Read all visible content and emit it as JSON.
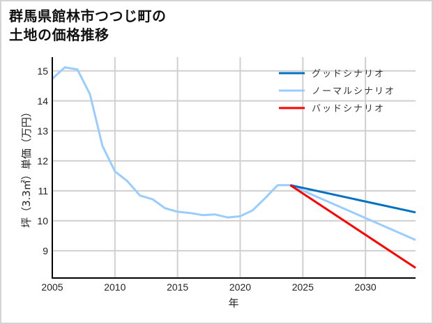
{
  "title": {
    "line1": "群馬県館林市つつじ町の",
    "line2": "土地の価格推移"
  },
  "colors": {
    "good": "#0070C0",
    "normal": "#99CCFF",
    "bad": "#FF0000",
    "grid": "#d0d0d0",
    "axis": "#000000"
  },
  "chart_data": {
    "type": "line",
    "title": "群馬県館林市つつじ町の土地の価格推移",
    "xlabel": "年",
    "ylabel": "坪（3.3㎡）単価（万円）",
    "xlim": [
      2005,
      2034
    ],
    "ylim": [
      8.09,
      15.46
    ],
    "xticks": [
      2005,
      2010,
      2015,
      2020,
      2025,
      2030
    ],
    "yticks": [
      9,
      10,
      11,
      12,
      13,
      14,
      15
    ],
    "grid": true,
    "legend_position": "upper right",
    "series": [
      {
        "name": "グッドシナリオ",
        "color": "#0070C0",
        "x": [
          2024,
          2034
        ],
        "values": [
          11.19,
          10.28
        ]
      },
      {
        "name": "ノーマルシナリオ",
        "color": "#99CCFF",
        "x": [
          2005,
          2006,
          2007,
          2008,
          2009,
          2010,
          2011,
          2012,
          2013,
          2014,
          2015,
          2016,
          2017,
          2018,
          2019,
          2020,
          2021,
          2022,
          2023,
          2024,
          2034
        ],
        "values": [
          14.74,
          15.12,
          15.05,
          14.23,
          12.5,
          11.65,
          11.32,
          10.84,
          10.72,
          10.42,
          10.3,
          10.26,
          10.19,
          10.21,
          10.11,
          10.15,
          10.35,
          10.76,
          11.19,
          11.19,
          9.36
        ]
      },
      {
        "name": "バッドシナリオ",
        "color": "#FF0000",
        "x": [
          2024,
          2034
        ],
        "values": [
          11.19,
          8.43
        ]
      }
    ]
  }
}
